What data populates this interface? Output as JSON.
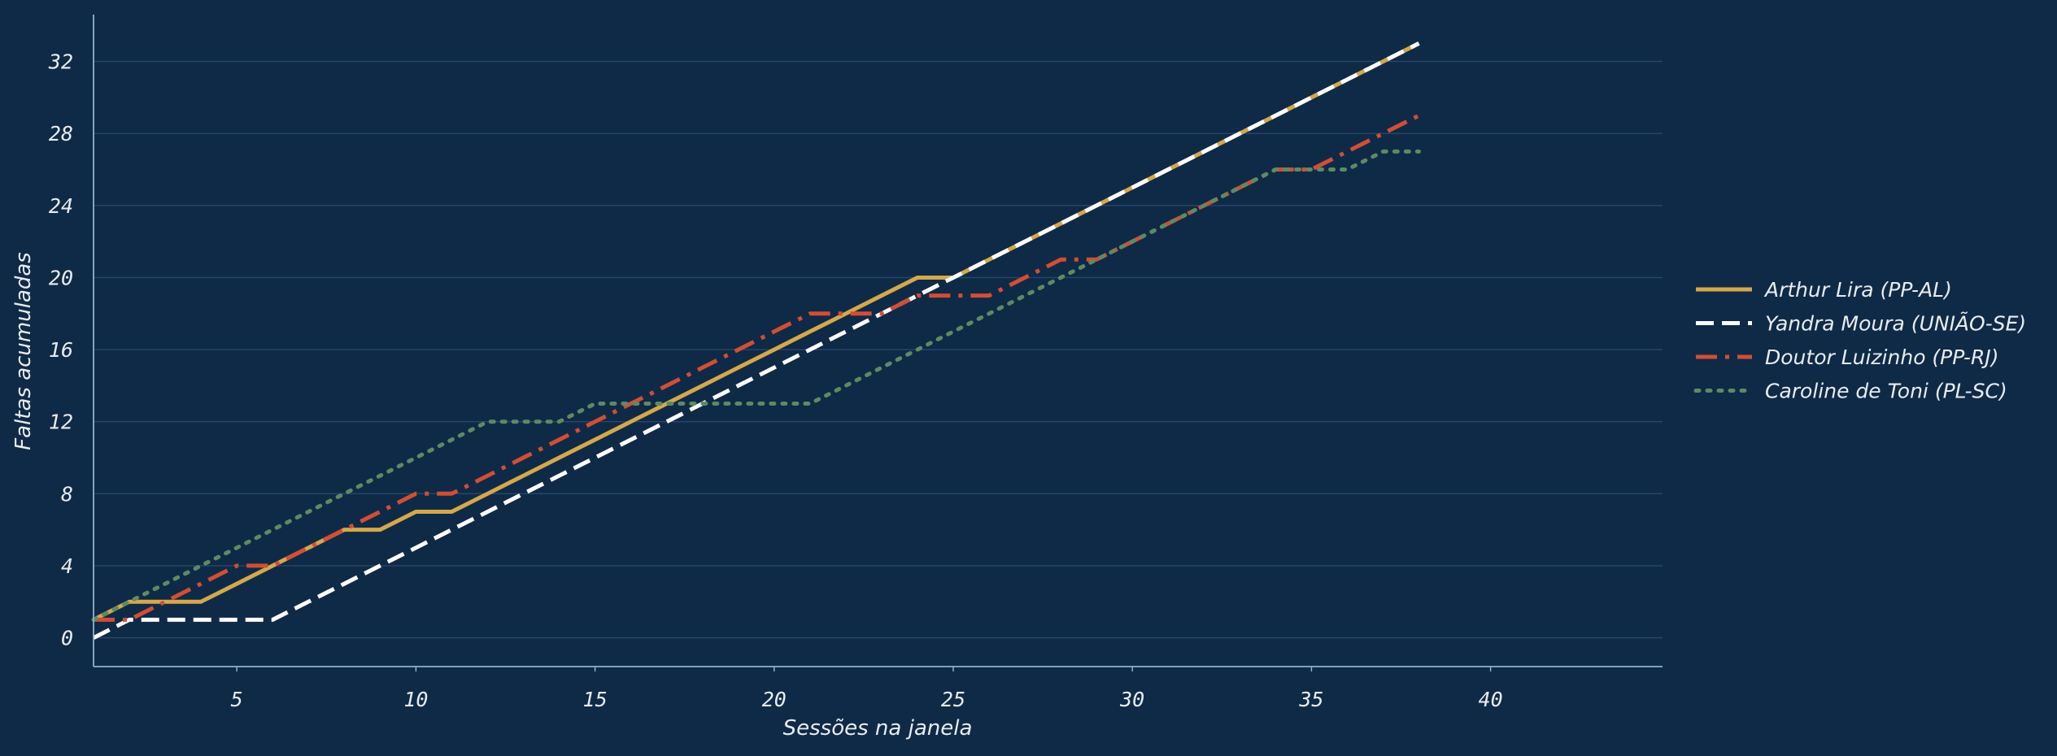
{
  "chart_data": {
    "type": "line",
    "xlabel": "Sessões na janela",
    "ylabel": "Faltas acumuladas",
    "xlim": [
      1,
      44.8
    ],
    "ylim": [
      -1.6,
      34.6
    ],
    "xticks": [
      "5",
      "10",
      "15",
      "20",
      "25",
      "30",
      "35",
      "40"
    ],
    "yticks": [
      "0",
      "4",
      "8",
      "12",
      "16",
      "20",
      "24",
      "28",
      "32"
    ],
    "grid": "horizontal",
    "legend_position": "right",
    "series": [
      {
        "name": "Arthur Lira (PP-AL)",
        "color": "#d4a84b",
        "style": "solid",
        "x": [
          1,
          2,
          3,
          4,
          5,
          6,
          7,
          8,
          9,
          10,
          11,
          12,
          13,
          14,
          15,
          16,
          17,
          18,
          19,
          20,
          21,
          22,
          23,
          24,
          25,
          26,
          27,
          28,
          29,
          30,
          31,
          32,
          33,
          34,
          35,
          36,
          37,
          38
        ],
        "y": [
          1,
          2,
          2,
          2,
          3,
          4,
          5,
          6,
          6,
          7,
          7,
          8,
          9,
          10,
          11,
          12,
          13,
          14,
          15,
          16,
          17,
          18,
          19,
          20,
          20,
          21,
          22,
          23,
          24,
          25,
          26,
          27,
          28,
          29,
          30,
          31,
          32,
          33
        ]
      },
      {
        "name": "Yandra Moura (UNIÃO-SE)",
        "color": "#ffffff",
        "style": "dashed",
        "x": [
          1,
          2,
          3,
          4,
          5,
          6,
          7,
          8,
          9,
          10,
          11,
          12,
          13,
          14,
          15,
          16,
          17,
          18,
          19,
          20,
          21,
          22,
          23,
          24,
          25,
          26,
          27,
          28,
          29,
          30,
          31,
          32,
          33,
          34,
          35,
          36,
          37,
          38
        ],
        "y": [
          0,
          1,
          1,
          1,
          1,
          1,
          2,
          3,
          4,
          5,
          6,
          7,
          8,
          9,
          10,
          11,
          12,
          13,
          14,
          15,
          16,
          17,
          18,
          19,
          20,
          21,
          22,
          23,
          24,
          25,
          26,
          27,
          28,
          29,
          30,
          31,
          32,
          33
        ]
      },
      {
        "name": "Doutor Luizinho (PP-RJ)",
        "color": "#d24e34",
        "style": "dashdot",
        "x": [
          1,
          2,
          3,
          4,
          5,
          6,
          7,
          8,
          9,
          10,
          11,
          12,
          13,
          14,
          15,
          16,
          17,
          18,
          19,
          20,
          21,
          22,
          23,
          24,
          25,
          26,
          27,
          28,
          29,
          30,
          31,
          32,
          33,
          34,
          35,
          36,
          37,
          38
        ],
        "y": [
          1,
          1,
          2,
          3,
          4,
          4,
          5,
          6,
          7,
          8,
          8,
          9,
          10,
          11,
          12,
          13,
          14,
          15,
          16,
          17,
          18,
          18,
          18,
          19,
          19,
          19,
          20,
          21,
          21,
          22,
          23,
          24,
          25,
          26,
          26,
          27,
          28,
          29
        ]
      },
      {
        "name": "Caroline de Toni (PL-SC)",
        "color": "#5e8a62",
        "style": "dotted",
        "x": [
          1,
          2,
          3,
          4,
          5,
          6,
          7,
          8,
          9,
          10,
          11,
          12,
          13,
          14,
          15,
          16,
          17,
          18,
          19,
          20,
          21,
          22,
          23,
          24,
          25,
          26,
          27,
          28,
          29,
          30,
          31,
          32,
          33,
          34,
          35,
          36,
          37,
          38
        ],
        "y": [
          1,
          2,
          3,
          4,
          5,
          6,
          7,
          8,
          9,
          10,
          11,
          12,
          12,
          12,
          13,
          13,
          13,
          13,
          13,
          13,
          13,
          14,
          15,
          16,
          17,
          18,
          19,
          20,
          21,
          22,
          23,
          24,
          25,
          26,
          26,
          26,
          27,
          27
        ]
      }
    ]
  }
}
